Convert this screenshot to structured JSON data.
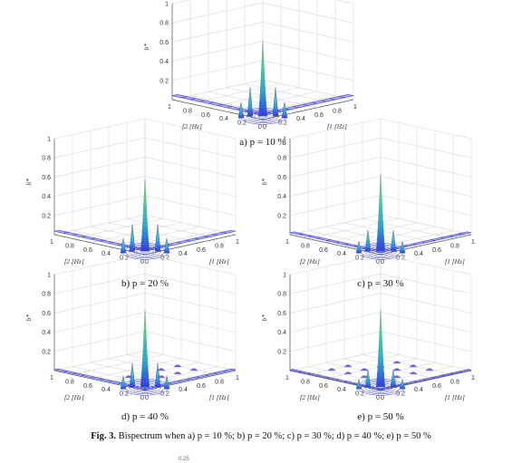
{
  "figure": {
    "caption_label": "Fig. 3.",
    "caption_text": "Bispectrum when a) p = 10 %; b) p = 20 %; c) p = 30 %; d) p = 40 %; e) p = 50 %",
    "cut_text": "0.25"
  },
  "chart_data": [
    {
      "type": "surface3d",
      "panel": "a) p = 10 %",
      "xlabel": "f1 [Hz]",
      "ylabel": "f2 [Hz]",
      "zlabel": "b*",
      "x_ticks": [
        "0",
        "0.2",
        "0.4",
        "0.6",
        "0.8",
        "1"
      ],
      "y_ticks": [
        "0",
        "0.2",
        "0.4",
        "0.6",
        "0.8",
        "1"
      ],
      "z_ticks": [
        "1",
        "0.8",
        "0.6",
        "0.4",
        "0.2"
      ],
      "zlim": [
        0,
        1
      ],
      "grid": true,
      "peak": 0.78,
      "ridge_level": 0.12,
      "satellite_peaks": 0.3
    },
    {
      "type": "surface3d",
      "panel": "b) p = 20 %",
      "xlabel": "f1 [Hz]",
      "ylabel": "f2 [Hz]",
      "zlabel": "b*",
      "x_ticks": [
        "0",
        "0.2",
        "0.4",
        "0.6",
        "0.8",
        "1"
      ],
      "y_ticks": [
        "0",
        "0.2",
        "0.4",
        "0.6",
        "0.8",
        "1"
      ],
      "z_ticks": [
        "1",
        "0.8",
        "0.6",
        "0.4",
        "0.2"
      ],
      "zlim": [
        0,
        1
      ],
      "grid": true,
      "peak": 0.75,
      "ridge_level": 0.1,
      "satellite_peaks": 0.28
    },
    {
      "type": "surface3d",
      "panel": "c) p = 30 %",
      "xlabel": "f1 [Hz]",
      "ylabel": "f2 [Hz]",
      "zlabel": "b*",
      "x_ticks": [
        "0",
        "0.2",
        "0.4",
        "0.6",
        "0.8",
        "1"
      ],
      "y_ticks": [
        "0",
        "0.2",
        "0.4",
        "0.6",
        "0.8",
        "1"
      ],
      "z_ticks": [
        "1",
        "0.8",
        "0.6",
        "0.4",
        "0.2"
      ],
      "zlim": [
        0,
        1
      ],
      "grid": true,
      "peak": 0.8,
      "ridge_level": 0.06,
      "satellite_peaks": 0.22
    },
    {
      "type": "surface3d",
      "panel": "d) p = 40 %",
      "xlabel": "f1 [Hz]",
      "ylabel": "f2 [Hz]",
      "zlabel": "b*",
      "x_ticks": [
        "0",
        "0.2",
        "0.4",
        "0.6",
        "0.8",
        "1"
      ],
      "y_ticks": [
        "0",
        "0.2",
        "0.4",
        "0.6",
        "0.8",
        "1"
      ],
      "z_ticks": [
        "1",
        "0.8",
        "0.6",
        "0.4",
        "0.2"
      ],
      "zlim": [
        0,
        1
      ],
      "grid": true,
      "peak": 0.8,
      "ridge_level": 0.03,
      "satellite_peaks": 0.25
    },
    {
      "type": "surface3d",
      "panel": "e) p = 50 %",
      "xlabel": "f1 [Hz]",
      "ylabel": "f2 [Hz]",
      "zlabel": "b*",
      "x_ticks": [
        "0",
        "0.2",
        "0.4",
        "0.6",
        "0.8",
        "1"
      ],
      "y_ticks": [
        "0",
        "0.2",
        "0.4",
        "0.6",
        "0.8",
        "1"
      ],
      "z_ticks": [
        "1",
        "0.8",
        "0.6",
        "0.4",
        "0.2"
      ],
      "zlim": [
        0,
        1
      ],
      "grid": true,
      "peak": 0.8,
      "ridge_level": 0.02,
      "satellite_peaks": 0.18
    }
  ]
}
